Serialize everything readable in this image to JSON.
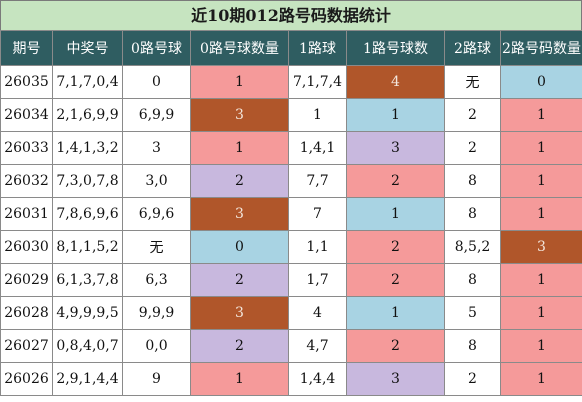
{
  "title": "近10期012路号码数据统计",
  "headers": [
    "期号",
    "中奖号",
    "0路号球",
    "0路号球数量",
    "1路球",
    "1路号球数",
    "2路球",
    "2路号码数量"
  ],
  "rows": [
    {
      "cells": [
        "26035",
        "7,1,7,0,4",
        "0",
        "1",
        "7,1,7,4",
        "4",
        "无",
        "0"
      ],
      "colors": [
        "plain",
        "plain",
        "plain",
        "pink",
        "plain",
        "brown",
        "plain",
        "blue"
      ]
    },
    {
      "cells": [
        "26034",
        "2,1,6,9,9",
        "6,9,9",
        "3",
        "1",
        "1",
        "2",
        "1"
      ],
      "colors": [
        "plain",
        "plain",
        "plain",
        "brown",
        "plain",
        "blue",
        "plain",
        "pink"
      ]
    },
    {
      "cells": [
        "26033",
        "1,4,1,3,2",
        "3",
        "1",
        "1,4,1",
        "3",
        "2",
        "1"
      ],
      "colors": [
        "plain",
        "plain",
        "plain",
        "pink",
        "plain",
        "purple",
        "plain",
        "pink"
      ]
    },
    {
      "cells": [
        "26032",
        "7,3,0,7,8",
        "3,0",
        "2",
        "7,7",
        "2",
        "8",
        "1"
      ],
      "colors": [
        "plain",
        "plain",
        "plain",
        "purple",
        "plain",
        "pink",
        "plain",
        "pink"
      ]
    },
    {
      "cells": [
        "26031",
        "7,8,6,9,6",
        "6,9,6",
        "3",
        "7",
        "1",
        "8",
        "1"
      ],
      "colors": [
        "plain",
        "plain",
        "plain",
        "brown",
        "plain",
        "blue",
        "plain",
        "pink"
      ]
    },
    {
      "cells": [
        "26030",
        "8,1,1,5,2",
        "无",
        "0",
        "1,1",
        "2",
        "8,5,2",
        "3"
      ],
      "colors": [
        "plain",
        "plain",
        "plain",
        "blue",
        "plain",
        "pink",
        "plain",
        "brown"
      ]
    },
    {
      "cells": [
        "26029",
        "6,1,3,7,8",
        "6,3",
        "2",
        "1,7",
        "2",
        "8",
        "1"
      ],
      "colors": [
        "plain",
        "plain",
        "plain",
        "purple",
        "plain",
        "pink",
        "plain",
        "pink"
      ]
    },
    {
      "cells": [
        "26028",
        "4,9,9,9,5",
        "9,9,9",
        "3",
        "4",
        "1",
        "5",
        "1"
      ],
      "colors": [
        "plain",
        "plain",
        "plain",
        "brown",
        "plain",
        "blue",
        "plain",
        "pink"
      ]
    },
    {
      "cells": [
        "26027",
        "0,8,4,0,7",
        "0,0",
        "2",
        "4,7",
        "2",
        "8",
        "1"
      ],
      "colors": [
        "plain",
        "plain",
        "plain",
        "purple",
        "plain",
        "pink",
        "plain",
        "pink"
      ]
    },
    {
      "cells": [
        "26026",
        "2,9,1,4,4",
        "9",
        "1",
        "1,4,4",
        "3",
        "2",
        "1"
      ],
      "colors": [
        "plain",
        "plain",
        "plain",
        "pink",
        "plain",
        "purple",
        "plain",
        "pink"
      ]
    }
  ]
}
